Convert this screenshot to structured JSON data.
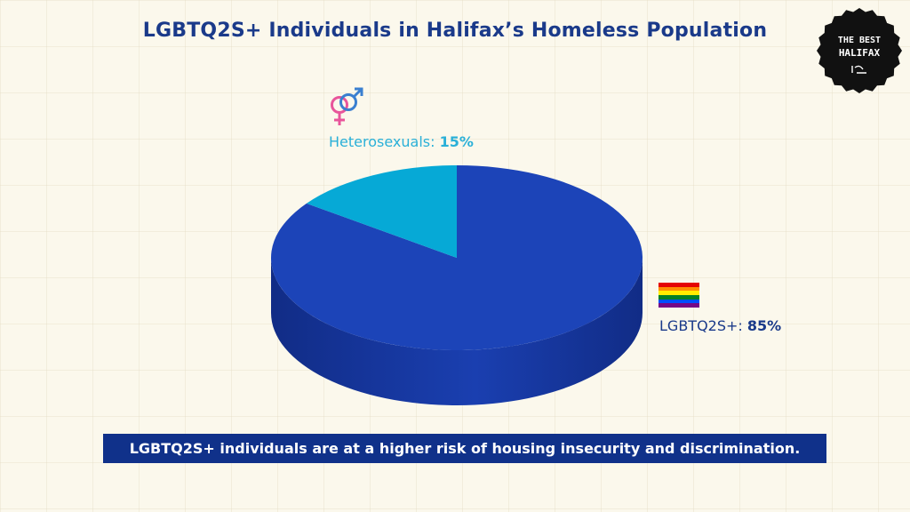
{
  "header": {
    "title": "LGBTQ2S+ Individuals in Halifax’s Homeless Population"
  },
  "badge": {
    "line1": "THE BEST",
    "line2": "HALIFAX"
  },
  "labels": {
    "hetero_name": "Heterosexuals: ",
    "hetero_value": "15%",
    "lgbt_name": "LGBTQ2S+: ",
    "lgbt_value": "85%"
  },
  "caption": "LGBTQ2S+ individuals are at a higher risk of housing insecurity and discrimination.",
  "colors": {
    "lgbt_top": "#1c44b8",
    "lgbt_side_dark": "#112c86",
    "lgbt_side_light": "#1a3fb0",
    "hetero_top": "#06a9d6",
    "title": "#1a3a8a",
    "caption_bg": "#10318a"
  },
  "icons": {
    "gender": "heterosexual-symbol-icon",
    "flag": "rainbow-flag-icon",
    "badge": "the-best-halifax-logo"
  },
  "chart_data": {
    "type": "pie",
    "title": "LGBTQ2S+ Individuals in Halifax’s Homeless Population",
    "categories": [
      "LGBTQ2S+",
      "Heterosexuals"
    ],
    "values": [
      85,
      15
    ],
    "unit": "%",
    "three_d": true
  }
}
